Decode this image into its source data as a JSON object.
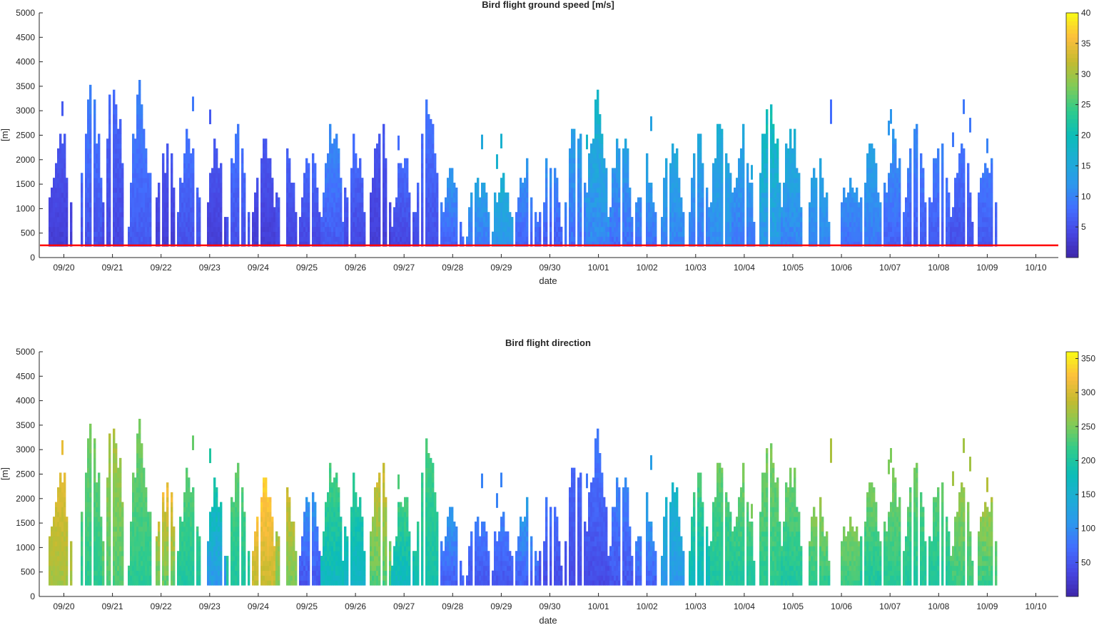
{
  "chart_data": [
    {
      "type": "heatmap",
      "title": "Bird flight ground speed [m/s]",
      "xlabel": "date",
      "ylabel": "[m]",
      "x_ticks": [
        "09/20",
        "09/21",
        "09/22",
        "09/23",
        "09/24",
        "09/25",
        "09/26",
        "09/27",
        "09/28",
        "09/29",
        "09/30",
        "10/01",
        "10/02",
        "10/03",
        "10/04",
        "10/05",
        "10/06",
        "10/07",
        "10/08",
        "10/09",
        "10/10"
      ],
      "x_start_offset_days": 0.45,
      "y_ticks": [
        "0",
        "500",
        "1000",
        "1500",
        "2000",
        "2500",
        "3000",
        "3500",
        "4000",
        "4500",
        "5000"
      ],
      "ylim": [
        0,
        5000
      ],
      "colorbar_ticks": [
        "5",
        "10",
        "15",
        "20",
        "25",
        "30",
        "35",
        "40"
      ],
      "colorbar_range": [
        0,
        40
      ],
      "colormap": "parula",
      "reference_line": {
        "altitude_m": 250,
        "color": "#ff0000"
      },
      "lowest_bin_m": 230,
      "nights": [
        {
          "day": 0.35,
          "peak_m": 2600,
          "value_low": 3,
          "value_high": 6
        },
        {
          "day": 1.0,
          "peak_m": 3400,
          "value_low": 5,
          "value_high": 10
        },
        {
          "day": 1.45,
          "peak_m": 3600,
          "value_low": 4,
          "value_high": 8
        },
        {
          "day": 2.0,
          "peak_m": 3400,
          "value_low": 6,
          "value_high": 10
        },
        {
          "day": 2.55,
          "peak_m": 2200,
          "value_low": 3,
          "value_high": 6
        },
        {
          "day": 3.0,
          "peak_m": 2600,
          "value_low": 5,
          "value_high": 9
        },
        {
          "day": 3.55,
          "peak_m": 2200,
          "value_low": 3,
          "value_high": 6
        },
        {
          "day": 4.0,
          "peak_m": 2600,
          "value_low": 5,
          "value_high": 9
        },
        {
          "day": 4.55,
          "peak_m": 2400,
          "value_low": 3,
          "value_high": 6
        },
        {
          "day": 5.0,
          "peak_m": 2200,
          "value_low": 4,
          "value_high": 7
        },
        {
          "day": 5.5,
          "peak_m": 2000,
          "value_low": 4,
          "value_high": 8
        },
        {
          "day": 5.95,
          "peak_m": 2600,
          "value_low": 6,
          "value_high": 11
        },
        {
          "day": 6.4,
          "peak_m": 2200,
          "value_low": 4,
          "value_high": 8
        },
        {
          "day": 6.95,
          "peak_m": 2600,
          "value_low": 3,
          "value_high": 6
        },
        {
          "day": 7.4,
          "peak_m": 2000,
          "value_low": 4,
          "value_high": 8
        },
        {
          "day": 7.9,
          "peak_m": 3200,
          "value_low": 5,
          "value_high": 9
        },
        {
          "day": 8.4,
          "peak_m": 1600,
          "value_low": 7,
          "value_high": 12
        },
        {
          "day": 8.95,
          "peak_m": 1600,
          "value_low": 9,
          "value_high": 15
        },
        {
          "day": 9.45,
          "peak_m": 1600,
          "value_low": 12,
          "value_high": 17
        },
        {
          "day": 9.95,
          "peak_m": 1800,
          "value_low": 7,
          "value_high": 12
        },
        {
          "day": 10.45,
          "peak_m": 2000,
          "value_low": 6,
          "value_high": 12
        },
        {
          "day": 10.95,
          "peak_m": 3000,
          "value_low": 8,
          "value_high": 15
        },
        {
          "day": 11.4,
          "peak_m": 3200,
          "value_low": 10,
          "value_high": 18
        },
        {
          "day": 11.9,
          "peak_m": 2600,
          "value_low": 8,
          "value_high": 15
        },
        {
          "day": 12.4,
          "peak_m": 1800,
          "value_low": 8,
          "value_high": 14
        },
        {
          "day": 12.95,
          "peak_m": 2400,
          "value_low": 10,
          "value_high": 16
        },
        {
          "day": 13.5,
          "peak_m": 2400,
          "value_low": 9,
          "value_high": 15
        },
        {
          "day": 13.95,
          "peak_m": 3000,
          "value_low": 11,
          "value_high": 17
        },
        {
          "day": 14.4,
          "peak_m": 2400,
          "value_low": 9,
          "value_high": 15
        },
        {
          "day": 14.95,
          "peak_m": 3600,
          "value_low": 12,
          "value_high": 22
        },
        {
          "day": 15.4,
          "peak_m": 2600,
          "value_low": 10,
          "value_high": 17
        },
        {
          "day": 15.95,
          "peak_m": 2000,
          "value_low": 10,
          "value_high": 15
        },
        {
          "day": 16.6,
          "peak_m": 1600,
          "value_low": 8,
          "value_high": 13
        },
        {
          "day": 17.05,
          "peak_m": 2200,
          "value_low": 9,
          "value_high": 14
        },
        {
          "day": 17.5,
          "peak_m": 2400,
          "value_low": 7,
          "value_high": 12
        },
        {
          "day": 17.95,
          "peak_m": 2800,
          "value_low": 6,
          "value_high": 11
        },
        {
          "day": 18.45,
          "peak_m": 2200,
          "value_low": 6,
          "value_high": 10
        },
        {
          "day": 18.9,
          "peak_m": 2400,
          "value_low": 5,
          "value_high": 9
        },
        {
          "day": 19.4,
          "peak_m": 2200,
          "value_low": 6,
          "value_high": 10
        }
      ]
    },
    {
      "type": "heatmap",
      "title": "Bird flight direction",
      "xlabel": "date",
      "ylabel": "[m]",
      "x_ticks": [
        "09/20",
        "09/21",
        "09/22",
        "09/23",
        "09/24",
        "09/25",
        "09/26",
        "09/27",
        "09/28",
        "09/29",
        "09/30",
        "10/01",
        "10/02",
        "10/03",
        "10/04",
        "10/05",
        "10/06",
        "10/07",
        "10/08",
        "10/09",
        "10/10"
      ],
      "x_start_offset_days": 0.45,
      "y_ticks": [
        "0",
        "500",
        "1000",
        "1500",
        "2000",
        "2500",
        "3000",
        "3500",
        "4000",
        "4500",
        "5000"
      ],
      "ylim": [
        0,
        5000
      ],
      "colorbar_ticks": [
        "50",
        "100",
        "150",
        "200",
        "250",
        "300",
        "350"
      ],
      "colorbar_range": [
        0,
        360
      ],
      "colormap": "parula",
      "lowest_bin_m": 230,
      "nights": [
        {
          "day": 0.35,
          "peak_m": 2600,
          "value_low": 270,
          "value_high": 310
        },
        {
          "day": 1.0,
          "peak_m": 3400,
          "value_low": 210,
          "value_high": 250
        },
        {
          "day": 1.45,
          "peak_m": 3600,
          "value_low": 230,
          "value_high": 280
        },
        {
          "day": 2.0,
          "peak_m": 3400,
          "value_low": 210,
          "value_high": 250
        },
        {
          "day": 2.55,
          "peak_m": 2200,
          "value_low": 240,
          "value_high": 320
        },
        {
          "day": 3.0,
          "peak_m": 2600,
          "value_low": 200,
          "value_high": 240
        },
        {
          "day": 3.55,
          "peak_m": 2200,
          "value_low": 110,
          "value_high": 200
        },
        {
          "day": 4.0,
          "peak_m": 2600,
          "value_low": 200,
          "value_high": 240
        },
        {
          "day": 4.55,
          "peak_m": 2400,
          "value_low": 290,
          "value_high": 340
        },
        {
          "day": 5.0,
          "peak_m": 2200,
          "value_low": 250,
          "value_high": 300
        },
        {
          "day": 5.5,
          "peak_m": 2000,
          "value_low": 50,
          "value_high": 110
        },
        {
          "day": 5.95,
          "peak_m": 2600,
          "value_low": 170,
          "value_high": 230
        },
        {
          "day": 6.4,
          "peak_m": 2200,
          "value_low": 160,
          "value_high": 210
        },
        {
          "day": 6.95,
          "peak_m": 2600,
          "value_low": 230,
          "value_high": 300
        },
        {
          "day": 7.4,
          "peak_m": 2000,
          "value_low": 170,
          "value_high": 230
        },
        {
          "day": 7.9,
          "peak_m": 3200,
          "value_low": 190,
          "value_high": 230
        },
        {
          "day": 8.4,
          "peak_m": 1600,
          "value_low": 60,
          "value_high": 110
        },
        {
          "day": 8.95,
          "peak_m": 1600,
          "value_low": 50,
          "value_high": 90
        },
        {
          "day": 9.45,
          "peak_m": 1600,
          "value_low": 50,
          "value_high": 90
        },
        {
          "day": 9.95,
          "peak_m": 1800,
          "value_low": 60,
          "value_high": 120
        },
        {
          "day": 10.45,
          "peak_m": 2000,
          "value_low": 40,
          "value_high": 80
        },
        {
          "day": 10.95,
          "peak_m": 3000,
          "value_low": 40,
          "value_high": 70
        },
        {
          "day": 11.4,
          "peak_m": 3200,
          "value_low": 40,
          "value_high": 80
        },
        {
          "day": 11.9,
          "peak_m": 2600,
          "value_low": 50,
          "value_high": 100
        },
        {
          "day": 12.4,
          "peak_m": 1800,
          "value_low": 60,
          "value_high": 120
        },
        {
          "day": 12.95,
          "peak_m": 2400,
          "value_low": 110,
          "value_high": 170
        },
        {
          "day": 13.5,
          "peak_m": 2400,
          "value_low": 170,
          "value_high": 230
        },
        {
          "day": 13.95,
          "peak_m": 3000,
          "value_low": 200,
          "value_high": 250
        },
        {
          "day": 14.4,
          "peak_m": 2400,
          "value_low": 200,
          "value_high": 250
        },
        {
          "day": 14.95,
          "peak_m": 3600,
          "value_low": 210,
          "value_high": 260
        },
        {
          "day": 15.4,
          "peak_m": 2600,
          "value_low": 200,
          "value_high": 250
        },
        {
          "day": 15.95,
          "peak_m": 2000,
          "value_low": 210,
          "value_high": 270
        },
        {
          "day": 16.6,
          "peak_m": 1600,
          "value_low": 220,
          "value_high": 260
        },
        {
          "day": 17.05,
          "peak_m": 2200,
          "value_low": 200,
          "value_high": 250
        },
        {
          "day": 17.5,
          "peak_m": 2400,
          "value_low": 210,
          "value_high": 250
        },
        {
          "day": 17.95,
          "peak_m": 2800,
          "value_low": 200,
          "value_high": 250
        },
        {
          "day": 18.45,
          "peak_m": 2200,
          "value_low": 200,
          "value_high": 240
        },
        {
          "day": 18.9,
          "peak_m": 2400,
          "value_low": 220,
          "value_high": 270
        },
        {
          "day": 19.4,
          "peak_m": 2200,
          "value_low": 220,
          "value_high": 280
        }
      ]
    }
  ]
}
